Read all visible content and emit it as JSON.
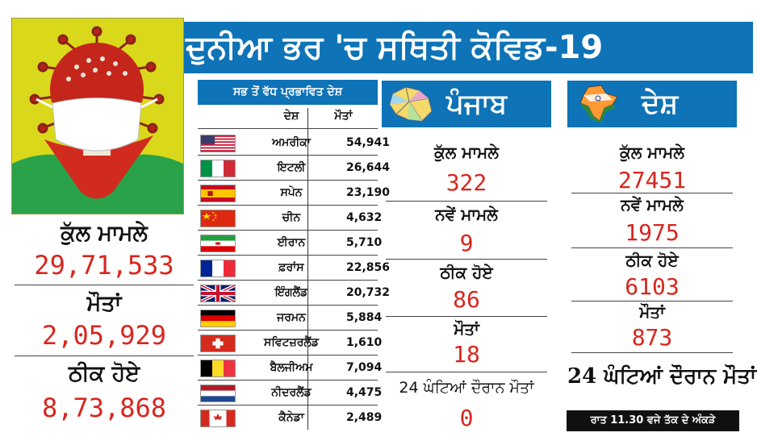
{
  "title": "ਦੁਨੀਆ ਭਰ 'ਚ ਸਥਿਤੀ ਕੋਵਿਡ-19",
  "colors": {
    "header_blue": "#0e73b7",
    "value_red": "#d8261e"
  },
  "world": {
    "total_cases_label": "ਕੁੱਲ ਮਾਮਲੇ",
    "total_cases": "29,71,533",
    "deaths_label": "ਮੌਤਾਂ",
    "deaths": "2,05,929",
    "recovered_label": "ਠੀਕ ਹੋਏ",
    "recovered": "8,73,868"
  },
  "table": {
    "title": "ਸਭ ਤੋਂ ਵੱਧ ਪ੍ਰਭਾਵਿਤ ਦੇਸ਼",
    "col_country": "ਦੇਸ਼",
    "col_deaths": "ਮੌਤਾਂ",
    "rows": [
      {
        "flag": "usa-flag-icon",
        "country": "ਅਮਰੀਕਾ",
        "deaths": "54,941"
      },
      {
        "flag": "italy-flag-icon",
        "country": "ਇਟਲੀ",
        "deaths": "26,644"
      },
      {
        "flag": "spain-flag-icon",
        "country": "ਸਪੇਨ",
        "deaths": "23,190"
      },
      {
        "flag": "china-flag-icon",
        "country": "ਚੀਨ",
        "deaths": "4,632"
      },
      {
        "flag": "iran-flag-icon",
        "country": "ਈਰਾਨ",
        "deaths": "5,710"
      },
      {
        "flag": "france-flag-icon",
        "country": "ਫ਼ਰਾਂਸ",
        "deaths": "22,856"
      },
      {
        "flag": "uk-flag-icon",
        "country": "ਇੰਗਲੈਂਡ",
        "deaths": "20,732"
      },
      {
        "flag": "germany-flag-icon",
        "country": "ਜਰਮਨ",
        "deaths": "5,884"
      },
      {
        "flag": "switzerland-flag-icon",
        "country": "ਸਵਿਟਜ਼ਰਲੈਂਡ",
        "deaths": "1,610"
      },
      {
        "flag": "belgium-flag-icon",
        "country": "ਬੈਲਜੀਅਮ",
        "deaths": "7,094"
      },
      {
        "flag": "netherlands-flag-icon",
        "country": "ਨੀਦਰਲੈਂਡ",
        "deaths": "4,475"
      },
      {
        "flag": "canada-flag-icon",
        "country": "ਕੈਨੇਡਾ",
        "deaths": "2,489"
      }
    ]
  },
  "punjab": {
    "heading": "ਪੰਜਾਬ",
    "total_label": "ਕੁੱਲ ਮਾਮਲੇ",
    "total": "322",
    "new_label": "ਨਵੇਂ ਮਾਮਲੇ",
    "new": "9",
    "recovered_label": "ਠੀਕ ਹੋਏ",
    "recovered": "86",
    "deaths_label": "ਮੌਤਾਂ",
    "deaths": "18",
    "deaths_24h_label": "24 ਘੰਟਿਆਂ ਦੌਰਾਨ ਮੌਤਾਂ",
    "deaths_24h": "0"
  },
  "india": {
    "heading": "ਦੇਸ਼",
    "total_label": "ਕੁੱਲ ਮਾਮਲੇ",
    "total": "27451",
    "new_label": "ਨਵੇਂ ਮਾਮਲੇ",
    "new": "1975",
    "recovered_label": "ਠੀਕ ਹੋਏ",
    "recovered": "6103",
    "deaths_label": "ਮੌਤਾਂ",
    "deaths": "873",
    "deaths_24h_label": "24 ਘੰਟਿਆਂ ਦੌਰਾਨ ਮੌਤਾਂ"
  },
  "footer": "ਰਾਤ 11.30 ਵਜੇ ਤੱਕ ਦੇ ਅੰਕੜੇ"
}
